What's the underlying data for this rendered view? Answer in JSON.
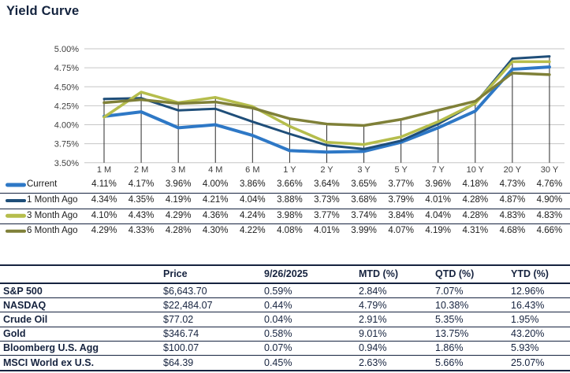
{
  "title": "Yield Curve",
  "colors": {
    "grid": "#C6C6C6",
    "drop_line": "#2B2B2B",
    "axis_text": "#404040",
    "separator": "#16233F",
    "text_dark": "#16233F",
    "current": "#2E78C6",
    "one_month_ago": "#1F4E79",
    "three_month_ago": "#B5BD4C",
    "six_month_ago": "#7F8038"
  },
  "chart_data": {
    "type": "line",
    "title": "Yield Curve",
    "xlabel": "",
    "ylabel": "",
    "ylim": [
      3.5,
      5.0
    ],
    "ytick_step": 0.25,
    "ytick_labels": [
      "3.50%",
      "3.75%",
      "4.00%",
      "4.25%",
      "4.50%",
      "4.75%",
      "5.00%"
    ],
    "grid": true,
    "drop_lines": true,
    "legend_position": "bottom",
    "categories": [
      "1 M",
      "2 M",
      "3 M",
      "4 M",
      "6 M",
      "1 Y",
      "2 Y",
      "3 Y",
      "5 Y",
      "7 Y",
      "10 Y",
      "20 Y",
      "30 Y"
    ],
    "series": [
      {
        "name": "Current",
        "color": "#2E78C6",
        "width": 4,
        "values": [
          4.11,
          4.17,
          3.96,
          4.0,
          3.86,
          3.66,
          3.64,
          3.65,
          3.77,
          3.96,
          4.18,
          4.73,
          4.76
        ]
      },
      {
        "name": "1 Month Ago",
        "color": "#1F4E79",
        "width": 3,
        "values": [
          4.34,
          4.35,
          4.19,
          4.21,
          4.04,
          3.88,
          3.73,
          3.68,
          3.79,
          4.01,
          4.28,
          4.87,
          4.9
        ]
      },
      {
        "name": "3 Month Ago",
        "color": "#B5BD4C",
        "width": 3.5,
        "values": [
          4.1,
          4.43,
          4.29,
          4.36,
          4.24,
          3.98,
          3.77,
          3.74,
          3.84,
          4.04,
          4.28,
          4.83,
          4.83
        ]
      },
      {
        "name": "6 Month Ago",
        "color": "#7F8038",
        "width": 3.5,
        "values": [
          4.29,
          4.33,
          4.28,
          4.3,
          4.22,
          4.08,
          4.01,
          3.99,
          4.07,
          4.19,
          4.31,
          4.68,
          4.66
        ]
      }
    ]
  },
  "market_table": {
    "headers": [
      "Price",
      "9/26/2025",
      "MTD (%)",
      "QTD (%)",
      "YTD (%)"
    ],
    "rows": [
      [
        "S&P 500",
        "$6,643.70",
        "0.59%",
        "2.84%",
        "7.07%",
        "12.96%"
      ],
      [
        "NASDAQ",
        "$22,484.07",
        "0.44%",
        "4.79%",
        "10.38%",
        "16.43%"
      ],
      [
        "Crude Oil",
        "$77.02",
        "0.04%",
        "2.91%",
        "5.35%",
        "1.95%"
      ],
      [
        "Gold",
        "$346.74",
        "0.58%",
        "9.01%",
        "13.75%",
        "43.20%"
      ],
      [
        "Bloomberg U.S. Agg",
        "$100.07",
        "0.07%",
        "0.94%",
        "1.86%",
        "5.93%"
      ],
      [
        "MSCI World ex U.S.",
        "$64.39",
        "0.45%",
        "2.63%",
        "5.66%",
        "25.07%"
      ]
    ]
  }
}
